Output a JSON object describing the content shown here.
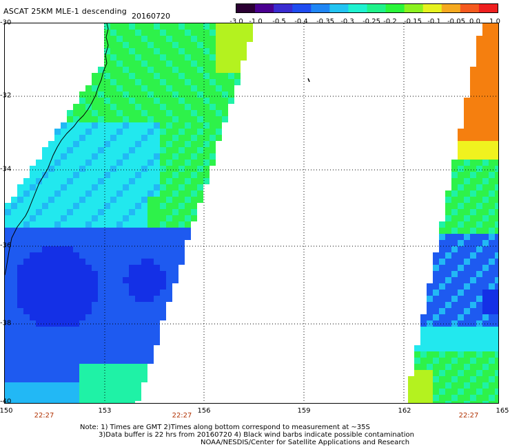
{
  "header": {
    "title": "ASCAT 25KM MLE-1 descending",
    "date": "20160720"
  },
  "colorbar": {
    "tick_labels": [
      "-3.0",
      "-1.0",
      "-0.5",
      "-0.4",
      "-0.35",
      "-0.3",
      "-0.25",
      "-0.2",
      "-0.15",
      "-0.1",
      "-0.05",
      "0.0",
      "1.0"
    ],
    "colors": [
      "#2b0033",
      "#4a0090",
      "#3a2cd0",
      "#1f4cf0",
      "#1f86f5",
      "#22c4f2",
      "#1ff2d0",
      "#1ff28a",
      "#2af53a",
      "#8cf21f",
      "#e6f21f",
      "#f5a91f",
      "#f55a1f",
      "#ee1f1f"
    ]
  },
  "map": {
    "lat_labels": [
      "-30",
      "-32",
      "-34",
      "-36",
      "-38",
      "-40"
    ],
    "lon_labels": [
      "150",
      "153",
      "156",
      "159",
      "162",
      "165"
    ],
    "time_labels": [
      "22:27",
      "22:27",
      "22:27"
    ],
    "palette": {
      "deep_blue": "#1430e6",
      "blue": "#1e5af0",
      "light_blue": "#22b8f5",
      "cyan": "#22e8ee",
      "aqua_green": "#1ff2a6",
      "green": "#2ef24a",
      "yellow_green": "#b4f21f",
      "yellow": "#f0f21f",
      "orange": "#f57f0f",
      "coast": "#000000",
      "grid": "#000000"
    }
  },
  "footer": {
    "note_line1": "Note: 1) Times are GMT 2)Times along bottom correspond to measurement at ~35S",
    "note_line2": "3)Data buffer is 22 hrs from 20160720 4) Black wind barbs indicate possible contamination",
    "note_line3": "NOAA/NESDIS/Center for Satellite Applications and Research"
  }
}
